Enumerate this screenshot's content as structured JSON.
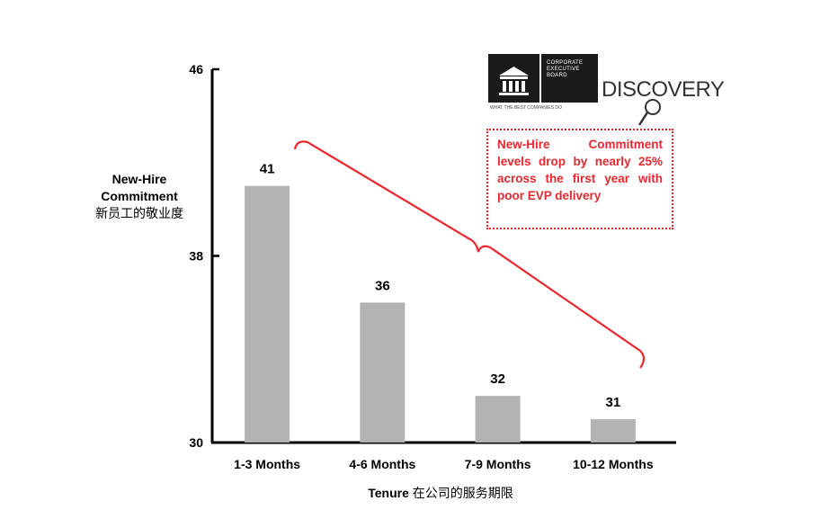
{
  "chart_data": {
    "type": "bar",
    "categories": [
      "1-3 Months",
      "4-6 Months",
      "7-9 Months",
      "10-12 Months"
    ],
    "values": [
      41,
      36,
      32,
      31
    ],
    "data_labels": [
      "41",
      "36",
      "32",
      "31"
    ],
    "ylim": [
      30,
      46
    ],
    "yticks": [
      "30",
      "38",
      "46"
    ],
    "ylabel": "New-Hire Commitment",
    "ylabel_cn": "新员工的敬业度",
    "xlabel": "Tenure",
    "xlabel_cn": "在公司的服务期限",
    "bar_color": "#b3b3b3",
    "grid": false
  },
  "callout": {
    "text": "New-Hire Commitment levels drop by nearly 25% across the first year with poor EVP delivery",
    "color": "#e8282e"
  },
  "logos": {
    "ceb_lines": [
      "CORPORATE",
      "EXECUTIVE",
      "BOARD"
    ],
    "ceb_tagline": "WHAT THE BEST COMPANIES DO",
    "discovery": "DISCOVERY"
  }
}
